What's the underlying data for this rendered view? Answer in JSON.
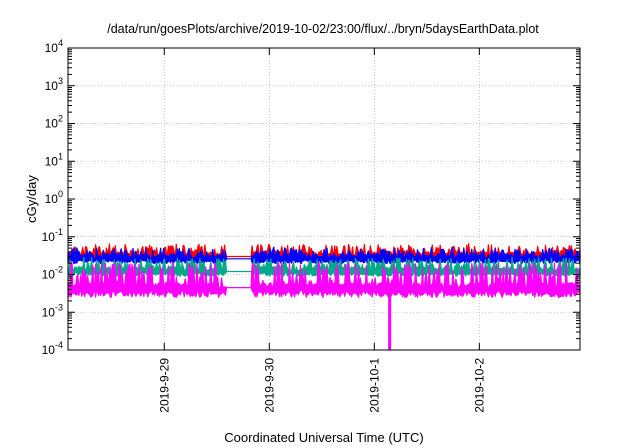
{
  "chart_data": {
    "type": "area",
    "title": "/data/run/goesPlots/archive/2019-10-02/23:00/flux/../bryn/5daysEarthData.plot",
    "xlabel": "Coordinated Universal Time (UTC)",
    "ylabel": "cGy/day",
    "yscale": "log",
    "ylim_exp": [
      -4,
      4
    ],
    "yticks": [
      {
        "base": "10",
        "exp": "-4"
      },
      {
        "base": "10",
        "exp": "-3"
      },
      {
        "base": "10",
        "exp": "-2"
      },
      {
        "base": "10",
        "exp": "-1"
      },
      {
        "base": "10",
        "exp": "0"
      },
      {
        "base": "10",
        "exp": "1"
      },
      {
        "base": "10",
        "exp": "2"
      },
      {
        "base": "10",
        "exp": "3"
      },
      {
        "base": "10",
        "exp": "4"
      }
    ],
    "xlim": [
      "2019-09-28 02:00",
      "2019-10-02 23:00"
    ],
    "xticks": [
      {
        "label": "2019-9-29",
        "date": "2019-09-29"
      },
      {
        "label": "2019-9-30",
        "date": "2019-09-30"
      },
      {
        "label": "2019-10-1",
        "date": "2019-10-01"
      },
      {
        "label": "2019-10-2",
        "date": "2019-10-02"
      }
    ],
    "grid": true,
    "data_gap": [
      "2019-09-29 14:00",
      "2019-09-29 20:00"
    ],
    "series": [
      {
        "color": "#ff0000",
        "base": 0.03,
        "spike": 0.055
      },
      {
        "color": "#0000ff",
        "base": 0.026,
        "spike": 0.045
      },
      {
        "color": "#00aa88",
        "base": 0.012,
        "spike": 0.025
      },
      {
        "color": "#ff00ff",
        "base": 0.0045,
        "spike": 0.02
      }
    ]
  }
}
